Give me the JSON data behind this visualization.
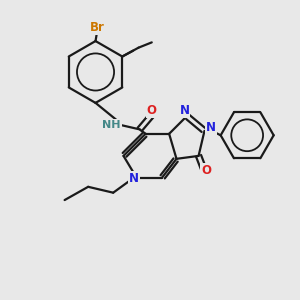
{
  "bg": "#e8e8e8",
  "bond_color": "#1a1a1a",
  "bw": 1.6,
  "atom_colors": {
    "N": "#2222dd",
    "O": "#dd2222",
    "Br": "#cc7700",
    "C": "#1a1a1a",
    "H": "#448888"
  },
  "fs": 8.5
}
